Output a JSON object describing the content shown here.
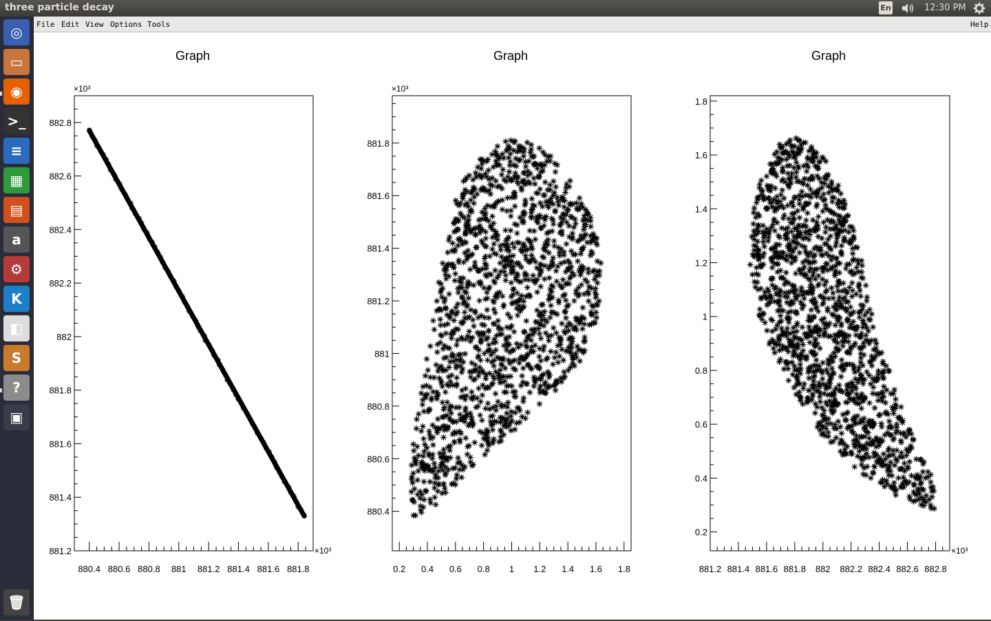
{
  "window": {
    "title": "three particle decay"
  },
  "top_panel": {
    "language": "En",
    "clock": "12:30 PM",
    "icons": [
      "sound-icon",
      "gear-icon"
    ]
  },
  "launcher": {
    "items": [
      {
        "name": "dash-home",
        "glyph": "◎",
        "color": "#3a5fb0"
      },
      {
        "name": "files",
        "glyph": "▭",
        "color": "#c8753e"
      },
      {
        "name": "firefox",
        "glyph": "◉",
        "color": "#e66000"
      },
      {
        "name": "terminal",
        "glyph": ">_",
        "color": "#333333"
      },
      {
        "name": "libreoffice-writer",
        "glyph": "≡",
        "color": "#2a6bbd"
      },
      {
        "name": "libreoffice-calc",
        "glyph": "▦",
        "color": "#2f9a3c"
      },
      {
        "name": "libreoffice-impress",
        "glyph": "▤",
        "color": "#d0501e"
      },
      {
        "name": "amazon",
        "glyph": "a",
        "color": "#555555"
      },
      {
        "name": "system-settings",
        "glyph": "⚙",
        "color": "#b53b3b"
      },
      {
        "name": "kde-connect",
        "glyph": "K",
        "color": "#1d7fc7"
      },
      {
        "name": "diagram-tool",
        "glyph": "◧",
        "color": "#dddddd"
      },
      {
        "name": "sublime-text",
        "glyph": "S",
        "color": "#c87a2e"
      },
      {
        "name": "help",
        "glyph": "?",
        "color": "#8c8c8c"
      },
      {
        "name": "workspace-switcher",
        "glyph": "▣",
        "color": "#3a3c4a"
      },
      {
        "name": "trash",
        "glyph": "🗑",
        "color": "#444444"
      }
    ]
  },
  "menubar": {
    "items": [
      "File",
      "Edit",
      "View",
      "Options",
      "Tools"
    ],
    "help": "Help"
  },
  "chart_data": [
    {
      "type": "scatter",
      "title": "Graph",
      "xlabel": "",
      "ylabel": "",
      "x_multiplier": "×10³",
      "y_multiplier": "×10³",
      "xlim": [
        880.3,
        881.9
      ],
      "ylim": [
        881.2,
        882.9
      ],
      "x_ticks": [
        "880.4",
        "880.6",
        "880.8",
        "881",
        "881.2",
        "881.4",
        "881.6",
        "881.8"
      ],
      "y_ticks": [
        "881.2",
        "881.4",
        "881.6",
        "881.8",
        "882",
        "882.2",
        "882.4",
        "882.6",
        "882.8"
      ],
      "shape": "line",
      "line": [
        [
          880.4,
          882.77
        ],
        [
          881.84,
          881.33
        ]
      ],
      "marker": "*",
      "grid": false
    },
    {
      "type": "scatter",
      "title": "Graph",
      "xlabel": "",
      "ylabel": "",
      "x_multiplier": "",
      "y_multiplier": "×10³",
      "xlim": [
        0.15,
        1.85
      ],
      "ylim": [
        880.25,
        881.98
      ],
      "x_ticks": [
        "0.2",
        "0.4",
        "0.6",
        "0.8",
        "1",
        "1.2",
        "1.4",
        "1.6",
        "1.8"
      ],
      "y_ticks": [
        "880.4",
        "880.6",
        "880.8",
        "881",
        "881.2",
        "881.4",
        "881.6",
        "881.8"
      ],
      "shape": "region",
      "boundary": [
        [
          0.3,
          880.38
        ],
        [
          0.27,
          880.55
        ],
        [
          0.35,
          880.85
        ],
        [
          0.42,
          881.05
        ],
        [
          0.45,
          881.2
        ],
        [
          0.52,
          881.4
        ],
        [
          0.6,
          881.6
        ],
        [
          0.72,
          881.73
        ],
        [
          0.88,
          881.8
        ],
        [
          1.05,
          881.82
        ],
        [
          1.25,
          881.77
        ],
        [
          1.42,
          881.66
        ],
        [
          1.58,
          881.5
        ],
        [
          1.65,
          881.35
        ],
        [
          1.62,
          881.15
        ],
        [
          1.5,
          880.98
        ],
        [
          1.3,
          880.85
        ],
        [
          1.05,
          880.72
        ],
        [
          0.82,
          880.62
        ],
        [
          0.6,
          880.5
        ],
        [
          0.42,
          880.4
        ]
      ],
      "marker": "*",
      "grid": false
    },
    {
      "type": "scatter",
      "title": "Graph",
      "xlabel": "",
      "ylabel": "",
      "x_multiplier": "×10³",
      "y_multiplier": "",
      "xlim": [
        881.2,
        882.9
      ],
      "ylim": [
        0.13,
        1.82
      ],
      "x_ticks": [
        "881.2",
        "881.4",
        "881.6",
        "881.8",
        "882",
        "882.2",
        "882.4",
        "882.6",
        "882.8"
      ],
      "y_ticks": [
        "0.2",
        "0.4",
        "0.6",
        "0.8",
        "1",
        "1.2",
        "1.4",
        "1.6",
        "1.8"
      ],
      "shape": "region",
      "boundary": [
        [
          881.55,
          1.5
        ],
        [
          881.7,
          1.65
        ],
        [
          881.83,
          1.67
        ],
        [
          882.0,
          1.6
        ],
        [
          882.15,
          1.45
        ],
        [
          882.28,
          1.2
        ],
        [
          882.35,
          1.0
        ],
        [
          882.5,
          0.75
        ],
        [
          882.65,
          0.55
        ],
        [
          882.78,
          0.4
        ],
        [
          882.8,
          0.28
        ],
        [
          882.7,
          0.3
        ],
        [
          882.5,
          0.32
        ],
        [
          882.3,
          0.4
        ],
        [
          882.0,
          0.55
        ],
        [
          881.82,
          0.7
        ],
        [
          881.65,
          0.85
        ],
        [
          881.55,
          1.0
        ],
        [
          881.48,
          1.2
        ],
        [
          881.5,
          1.38
        ]
      ],
      "marker": "*",
      "grid": false
    }
  ]
}
